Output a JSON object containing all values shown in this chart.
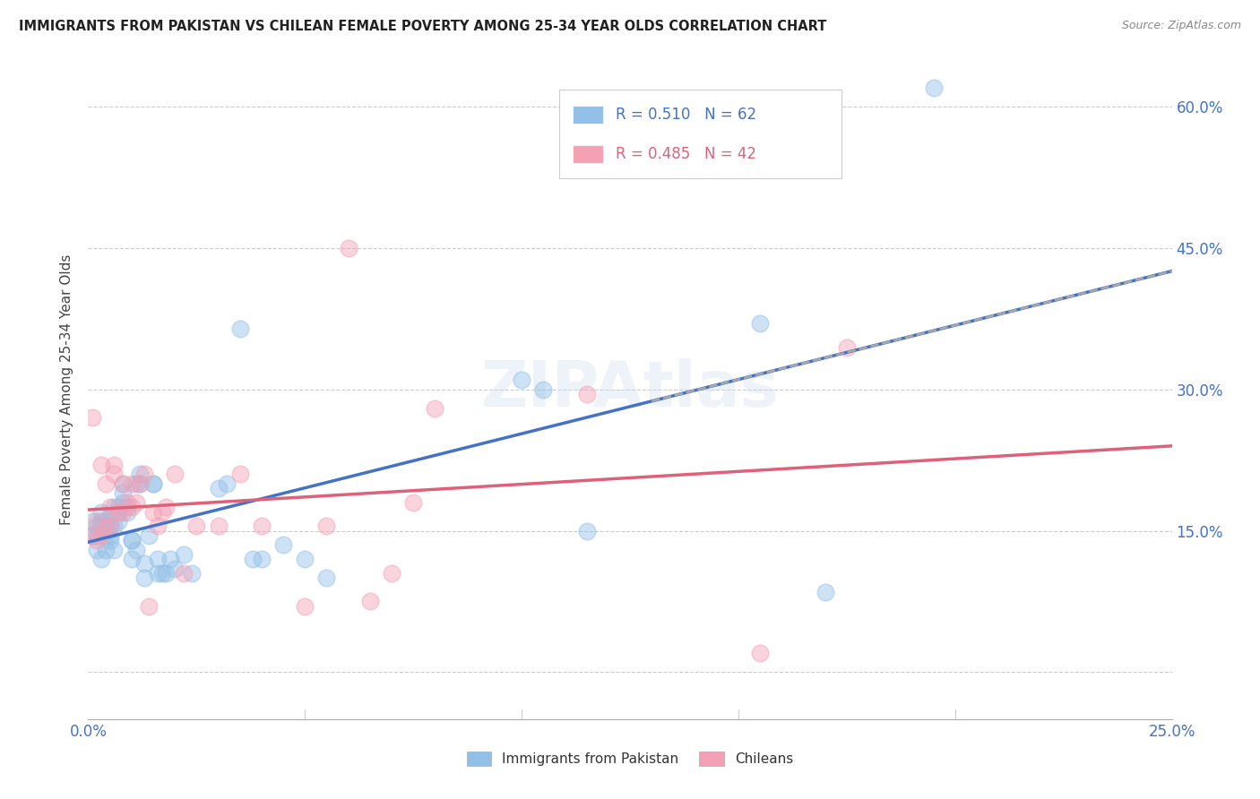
{
  "title": "IMMIGRANTS FROM PAKISTAN VS CHILEAN FEMALE POVERTY AMONG 25-34 YEAR OLDS CORRELATION CHART",
  "source": "Source: ZipAtlas.com",
  "ylabel": "Female Poverty Among 25-34 Year Olds",
  "xlim": [
    0.0,
    0.25
  ],
  "ylim": [
    -0.05,
    0.65
  ],
  "r_pakistan": 0.51,
  "n_pakistan": 62,
  "r_chilean": 0.485,
  "n_chilean": 42,
  "blue_color": "#92C0E8",
  "pink_color": "#F4A0B5",
  "blue_line_color": "#4472C4",
  "pink_line_color": "#E0607A",
  "dashed_line_color": "#AAAAAA",
  "watermark": "ZIPAtlas",
  "legend_label_1": "Immigrants from Pakistan",
  "legend_label_2": "Chileans",
  "grid_color": "#CCCCCC",
  "tick_color": "#4472C4",
  "pakistan_x": [
    0.001,
    0.001,
    0.002,
    0.002,
    0.002,
    0.003,
    0.003,
    0.003,
    0.003,
    0.004,
    0.004,
    0.004,
    0.004,
    0.005,
    0.005,
    0.005,
    0.005,
    0.006,
    0.006,
    0.006,
    0.007,
    0.007,
    0.007,
    0.008,
    0.008,
    0.008,
    0.009,
    0.009,
    0.01,
    0.01,
    0.01,
    0.011,
    0.011,
    0.012,
    0.012,
    0.013,
    0.013,
    0.014,
    0.015,
    0.015,
    0.016,
    0.016,
    0.017,
    0.018,
    0.019,
    0.02,
    0.022,
    0.024,
    0.03,
    0.032,
    0.035,
    0.038,
    0.04,
    0.045,
    0.05,
    0.055,
    0.1,
    0.105,
    0.115,
    0.155,
    0.17,
    0.195
  ],
  "pakistan_y": [
    0.145,
    0.16,
    0.145,
    0.13,
    0.155,
    0.12,
    0.155,
    0.16,
    0.17,
    0.13,
    0.145,
    0.15,
    0.16,
    0.14,
    0.145,
    0.155,
    0.165,
    0.13,
    0.155,
    0.175,
    0.16,
    0.17,
    0.175,
    0.18,
    0.19,
    0.2,
    0.17,
    0.175,
    0.14,
    0.14,
    0.12,
    0.13,
    0.2,
    0.21,
    0.2,
    0.1,
    0.115,
    0.145,
    0.2,
    0.2,
    0.12,
    0.105,
    0.105,
    0.105,
    0.12,
    0.11,
    0.125,
    0.105,
    0.195,
    0.2,
    0.365,
    0.12,
    0.12,
    0.135,
    0.12,
    0.1,
    0.31,
    0.3,
    0.15,
    0.37,
    0.085,
    0.62
  ],
  "chilean_x": [
    0.001,
    0.001,
    0.002,
    0.002,
    0.003,
    0.003,
    0.004,
    0.004,
    0.005,
    0.005,
    0.006,
    0.006,
    0.007,
    0.008,
    0.008,
    0.009,
    0.01,
    0.01,
    0.011,
    0.012,
    0.013,
    0.014,
    0.015,
    0.016,
    0.017,
    0.018,
    0.02,
    0.022,
    0.025,
    0.03,
    0.035,
    0.04,
    0.05,
    0.055,
    0.06,
    0.065,
    0.07,
    0.075,
    0.08,
    0.115,
    0.155,
    0.175
  ],
  "chilean_y": [
    0.145,
    0.27,
    0.16,
    0.14,
    0.145,
    0.22,
    0.155,
    0.2,
    0.155,
    0.175,
    0.21,
    0.22,
    0.17,
    0.2,
    0.17,
    0.18,
    0.2,
    0.175,
    0.18,
    0.2,
    0.21,
    0.07,
    0.17,
    0.155,
    0.17,
    0.175,
    0.21,
    0.105,
    0.155,
    0.155,
    0.21,
    0.155,
    0.07,
    0.155,
    0.45,
    0.075,
    0.105,
    0.18,
    0.28,
    0.295,
    0.02,
    0.345
  ]
}
